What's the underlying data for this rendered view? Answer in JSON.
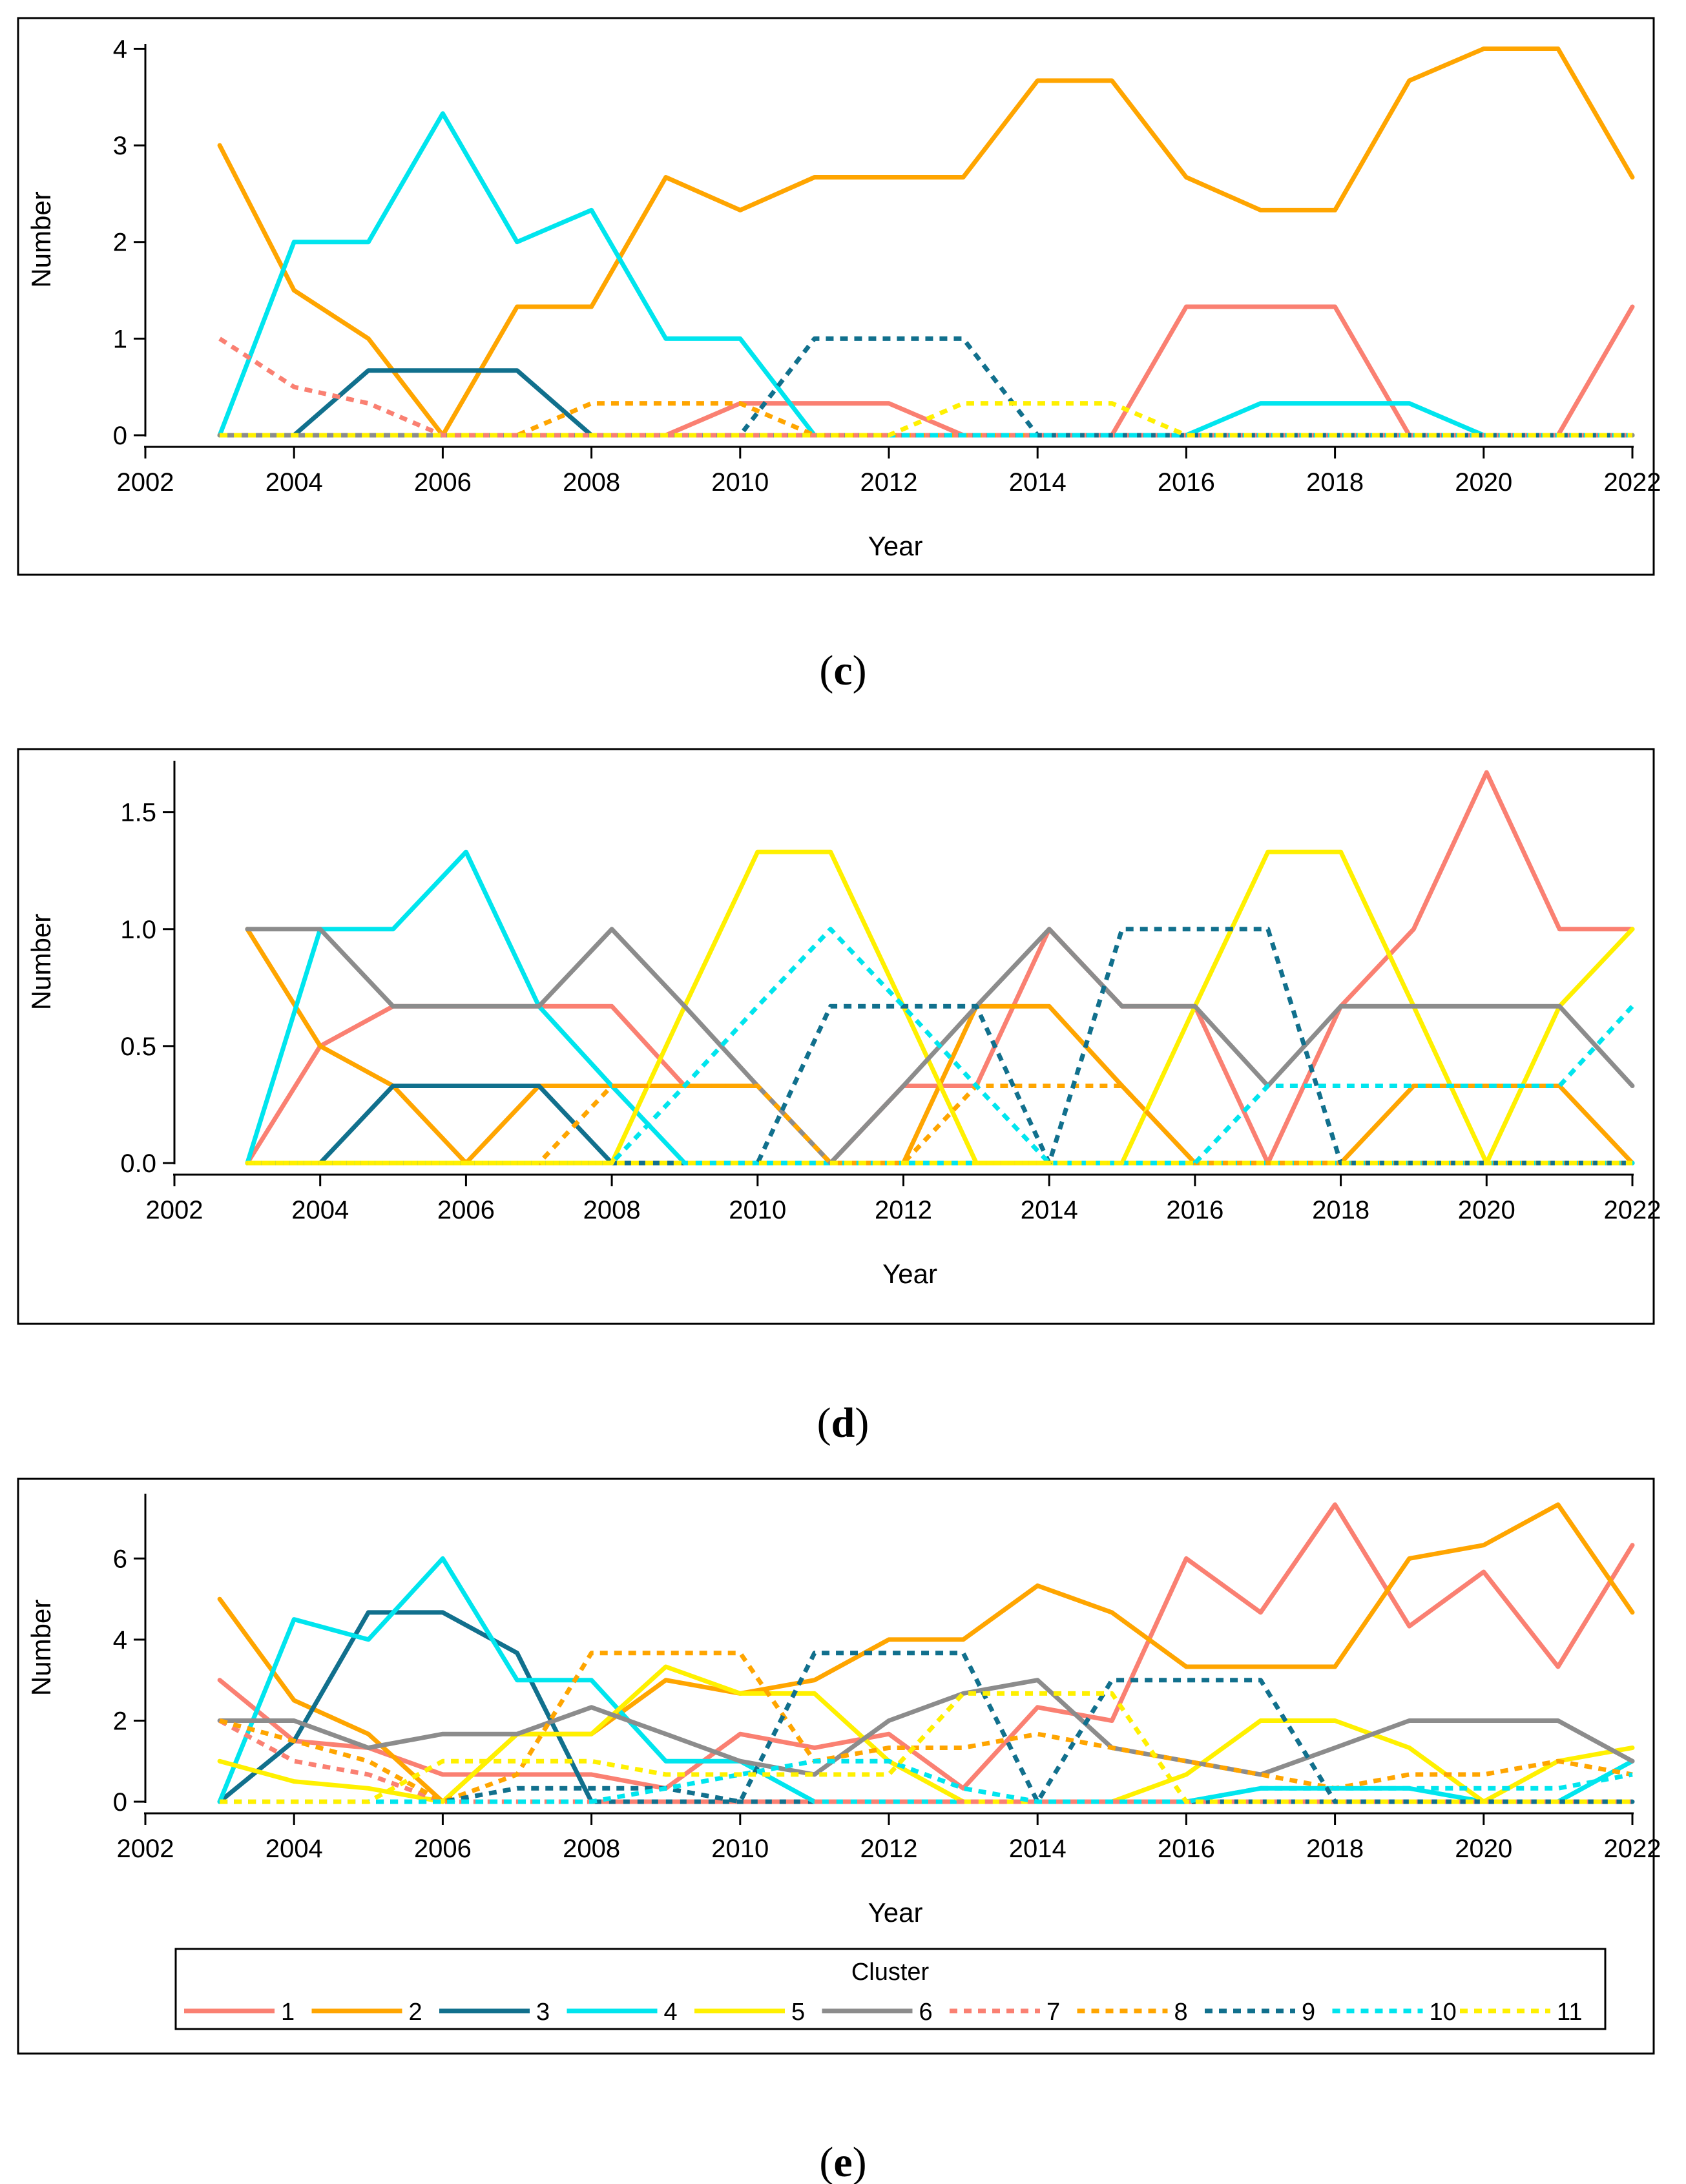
{
  "legend": {
    "title": "Cluster",
    "entries": [
      {
        "label": "1",
        "color": "#FA8072",
        "dash": "solid"
      },
      {
        "label": "2",
        "color": "#FFA500",
        "dash": "solid"
      },
      {
        "label": "3",
        "color": "#11708D",
        "dash": "solid"
      },
      {
        "label": "4",
        "color": "#00E5EE",
        "dash": "solid"
      },
      {
        "label": "5",
        "color": "#FFF000",
        "dash": "solid"
      },
      {
        "label": "6",
        "color": "#8C8C8C",
        "dash": "solid"
      },
      {
        "label": "7",
        "color": "#FA8072",
        "dash": "dotted"
      },
      {
        "label": "8",
        "color": "#FFA500",
        "dash": "dotted"
      },
      {
        "label": "9",
        "color": "#11708D",
        "dash": "dotted"
      },
      {
        "label": "10",
        "color": "#00E5EE",
        "dash": "dotted"
      },
      {
        "label": "11",
        "color": "#FFF000",
        "dash": "dotted"
      }
    ]
  },
  "chart_data": [
    {
      "type": "line",
      "panel_label": "c",
      "xlabel": "Year",
      "ylabel": "Number",
      "xlim": [
        2002,
        2022
      ],
      "ylim": [
        0,
        4.05
      ],
      "xticks": [
        "2002",
        "2004",
        "2006",
        "2008",
        "2010",
        "2012",
        "2014",
        "2016",
        "2018",
        "2020",
        "2022"
      ],
      "yticks": [
        "0",
        "1",
        "2",
        "3",
        "4"
      ],
      "x": [
        2003,
        2004,
        2005,
        2006,
        2007,
        2008,
        2009,
        2010,
        2011,
        2012,
        2013,
        2014,
        2015,
        2016,
        2017,
        2018,
        2019,
        2020,
        2021,
        2022
      ],
      "series": [
        {
          "name": "1",
          "values": [
            0,
            0,
            0,
            0,
            0,
            0,
            0,
            0.33,
            0.33,
            0.33,
            0,
            0,
            0,
            1.33,
            1.33,
            1.33,
            0,
            0,
            0,
            1.33
          ]
        },
        {
          "name": "2",
          "values": [
            3,
            1.5,
            1,
            0,
            1.33,
            1.33,
            2.67,
            2.33,
            2.67,
            2.67,
            2.67,
            3.67,
            3.67,
            2.67,
            2.33,
            2.33,
            3.67,
            4,
            4,
            2.67
          ]
        },
        {
          "name": "3",
          "values": [
            0,
            0,
            0.67,
            0.67,
            0.67,
            0,
            0,
            0,
            0,
            0,
            0,
            0,
            0,
            0,
            0,
            0,
            0,
            0,
            0,
            0
          ]
        },
        {
          "name": "4",
          "values": [
            0,
            2,
            2,
            3.33,
            2,
            2.33,
            1,
            1,
            0,
            0,
            0,
            0,
            0,
            0,
            0.33,
            0.33,
            0.33,
            0,
            0,
            0
          ]
        },
        {
          "name": "5",
          "values": [
            0,
            0,
            0,
            0,
            0,
            0,
            0,
            0,
            0,
            0,
            0,
            0,
            0,
            0,
            0,
            0,
            0,
            0,
            0,
            0
          ]
        },
        {
          "name": "6",
          "values": [
            0,
            0,
            0,
            0,
            0,
            0,
            0,
            0,
            0,
            0,
            0,
            0,
            0,
            0,
            0,
            0,
            0,
            0,
            0,
            0
          ]
        },
        {
          "name": "7",
          "values": [
            1,
            0.5,
            0.33,
            0,
            0,
            0,
            0,
            0,
            0,
            0,
            0,
            0,
            0,
            0,
            0,
            0,
            0,
            0,
            0,
            0
          ]
        },
        {
          "name": "8",
          "values": [
            0,
            0,
            0,
            0,
            0,
            0.33,
            0.33,
            0.33,
            0,
            0,
            0,
            0,
            0,
            0,
            0,
            0,
            0,
            0,
            0,
            0
          ]
        },
        {
          "name": "9",
          "values": [
            0,
            0,
            0,
            0,
            0,
            0,
            0,
            0,
            1,
            1,
            1,
            0,
            0,
            0,
            0,
            0,
            0,
            0,
            0,
            0
          ]
        },
        {
          "name": "10",
          "values": [
            0,
            0,
            0,
            0,
            0,
            0,
            0,
            0,
            0,
            0,
            0,
            0,
            0,
            0,
            0,
            0,
            0,
            0,
            0,
            0
          ]
        },
        {
          "name": "11",
          "values": [
            0,
            0,
            0,
            0,
            0,
            0,
            0,
            0,
            0,
            0,
            0.33,
            0.33,
            0.33,
            0,
            0,
            0,
            0,
            0,
            0,
            0
          ]
        }
      ]
    },
    {
      "type": "line",
      "panel_label": "d",
      "xlabel": "Year",
      "ylabel": "Number",
      "xlim": [
        2002,
        2022
      ],
      "ylim": [
        0,
        1.72
      ],
      "xticks": [
        "2002",
        "2004",
        "2006",
        "2008",
        "2010",
        "2012",
        "2014",
        "2016",
        "2018",
        "2020",
        "2022"
      ],
      "yticks": [
        "0.0",
        "0.5",
        "1.0",
        "1.5"
      ],
      "x": [
        2003,
        2004,
        2005,
        2006,
        2007,
        2008,
        2009,
        2010,
        2011,
        2012,
        2013,
        2014,
        2015,
        2016,
        2017,
        2018,
        2019,
        2020,
        2021,
        2022
      ],
      "series": [
        {
          "name": "1",
          "values": [
            0,
            0.5,
            0.67,
            0.67,
            0.67,
            0.67,
            0.33,
            0.33,
            0,
            0.33,
            0.33,
            1,
            0.67,
            0.67,
            0,
            0.67,
            1,
            1.67,
            1,
            1
          ]
        },
        {
          "name": "2",
          "values": [
            1,
            0.5,
            0.33,
            0,
            0.33,
            0.33,
            0.33,
            0.33,
            0,
            0,
            0.67,
            0.67,
            0.33,
            0,
            0,
            0,
            0.33,
            0.33,
            0.33,
            0
          ]
        },
        {
          "name": "3",
          "values": [
            0,
            0,
            0.33,
            0.33,
            0.33,
            0,
            0,
            0,
            0,
            0,
            0,
            0,
            0,
            0,
            0,
            0,
            0,
            0,
            0,
            0
          ]
        },
        {
          "name": "4",
          "values": [
            0,
            1,
            1,
            1.33,
            0.67,
            0.33,
            0,
            0,
            0,
            0,
            0,
            0,
            0,
            0,
            0,
            0,
            0,
            0,
            0,
            0
          ]
        },
        {
          "name": "5",
          "values": [
            0,
            0,
            0,
            0,
            0,
            0,
            0.67,
            1.33,
            1.33,
            0.67,
            0,
            0,
            0,
            0.67,
            1.33,
            1.33,
            0.67,
            0,
            0.67,
            1
          ]
        },
        {
          "name": "6",
          "values": [
            1,
            1,
            0.67,
            0.67,
            0.67,
            1,
            0.67,
            0.33,
            0,
            0.33,
            0.67,
            1,
            0.67,
            0.67,
            0.33,
            0.67,
            0.67,
            0.67,
            0.67,
            0.33
          ]
        },
        {
          "name": "7",
          "values": [
            0,
            0,
            0,
            0,
            0,
            0,
            0,
            0,
            0,
            0,
            0,
            0,
            0,
            0,
            0,
            0,
            0,
            0,
            0,
            0
          ]
        },
        {
          "name": "8",
          "values": [
            0,
            0,
            0,
            0,
            0,
            0.33,
            0.33,
            0.33,
            0,
            0,
            0.33,
            0.33,
            0.33,
            0,
            0,
            0,
            0,
            0,
            0,
            0
          ]
        },
        {
          "name": "9",
          "values": [
            0,
            0,
            0,
            0,
            0,
            0,
            0,
            0,
            0.67,
            0.67,
            0.67,
            0,
            1,
            1,
            1,
            0,
            0,
            0,
            0,
            0
          ]
        },
        {
          "name": "10",
          "values": [
            0,
            0,
            0,
            0,
            0,
            0,
            0.33,
            0.67,
            1,
            0.67,
            0.33,
            0,
            0,
            0,
            0.33,
            0.33,
            0.33,
            0.33,
            0.33,
            0.67
          ]
        },
        {
          "name": "11",
          "values": [
            0,
            0,
            0,
            0,
            0,
            0,
            0,
            0,
            0,
            0,
            0,
            0,
            0,
            0,
            0,
            0,
            0,
            0,
            0,
            0
          ]
        }
      ]
    },
    {
      "type": "line",
      "panel_label": "e",
      "xlabel": "Year",
      "ylabel": "Number",
      "xlim": [
        2002,
        2022
      ],
      "ylim": [
        0,
        7.6
      ],
      "xticks": [
        "2002",
        "2004",
        "2006",
        "2008",
        "2010",
        "2012",
        "2014",
        "2016",
        "2018",
        "2020",
        "2022"
      ],
      "yticks": [
        "0",
        "2",
        "4",
        "6"
      ],
      "x": [
        2003,
        2004,
        2005,
        2006,
        2007,
        2008,
        2009,
        2010,
        2011,
        2012,
        2013,
        2014,
        2015,
        2016,
        2017,
        2018,
        2019,
        2020,
        2021,
        2022
      ],
      "series": [
        {
          "name": "1",
          "values": [
            3,
            1.5,
            1.33,
            0.67,
            0.67,
            0.67,
            0.33,
            1.67,
            1.33,
            1.67,
            0.33,
            2.33,
            2,
            6,
            4.67,
            7.33,
            4.33,
            5.67,
            3.33,
            6.33
          ]
        },
        {
          "name": "2",
          "values": [
            5,
            2.5,
            1.67,
            0,
            1.67,
            1.67,
            3,
            2.67,
            3,
            4,
            4,
            5.33,
            4.67,
            3.33,
            3.33,
            3.33,
            6,
            6.33,
            7.33,
            4.67
          ]
        },
        {
          "name": "3",
          "values": [
            0,
            1.5,
            4.67,
            4.67,
            3.67,
            0,
            0,
            0,
            0,
            0,
            0,
            0,
            0,
            0,
            0,
            0,
            0,
            0,
            0,
            0
          ]
        },
        {
          "name": "4",
          "values": [
            0,
            4.5,
            4,
            6,
            3,
            3,
            1,
            1,
            0,
            0,
            0,
            0,
            0,
            0,
            0.33,
            0.33,
            0.33,
            0,
            0,
            1
          ]
        },
        {
          "name": "5",
          "values": [
            1,
            0.5,
            0.33,
            0,
            1.67,
            1.67,
            3.33,
            2.67,
            2.67,
            1,
            0,
            0,
            0,
            0.67,
            2,
            2,
            1.33,
            0,
            1,
            1.33
          ]
        },
        {
          "name": "6",
          "values": [
            2,
            2,
            1.33,
            1.67,
            1.67,
            2.33,
            1.67,
            1,
            0.67,
            2,
            2.67,
            3,
            1.33,
            1,
            0.67,
            1.33,
            2,
            2,
            2,
            1
          ]
        },
        {
          "name": "7",
          "values": [
            2,
            1,
            0.67,
            0,
            0,
            0,
            0,
            0,
            0,
            0,
            0,
            0,
            0,
            0,
            0,
            0,
            0,
            0,
            0,
            0
          ]
        },
        {
          "name": "8",
          "values": [
            2,
            1.5,
            1,
            0,
            0.67,
            3.67,
            3.67,
            3.67,
            1,
            1.33,
            1.33,
            1.67,
            1.33,
            1,
            0.67,
            0.33,
            0.67,
            0.67,
            1,
            0.67
          ]
        },
        {
          "name": "9",
          "values": [
            0,
            0,
            0,
            0,
            0.33,
            0.33,
            0.33,
            0,
            3.67,
            3.67,
            3.67,
            0,
            3,
            3,
            3,
            0,
            0,
            0,
            0,
            0
          ]
        },
        {
          "name": "10",
          "values": [
            0,
            0,
            0,
            0,
            0,
            0,
            0.33,
            0.67,
            1,
            1,
            0.33,
            0,
            0,
            0,
            0.33,
            0.33,
            0.33,
            0.33,
            0.33,
            0.67
          ]
        },
        {
          "name": "11",
          "values": [
            0,
            0,
            0,
            1,
            1,
            1,
            0.67,
            0.67,
            0.67,
            0.67,
            2.67,
            2.67,
            2.67,
            0,
            0,
            0,
            0,
            0,
            0,
            0
          ]
        }
      ]
    }
  ]
}
